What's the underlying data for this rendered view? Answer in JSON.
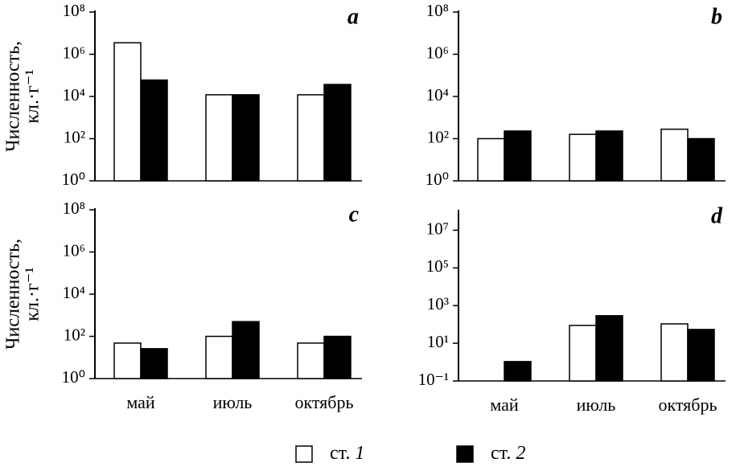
{
  "chart_data": [
    {
      "type": "bar",
      "label": "a",
      "log_scale": true,
      "ylabel": [
        "Численность,",
        "кл.·г⁻¹"
      ],
      "ylim": [
        1,
        100000000
      ],
      "yticks": [
        {
          "value": 1,
          "label": "10⁰"
        },
        {
          "value": 100,
          "label": "10²"
        },
        {
          "value": 10000,
          "label": "10⁴"
        },
        {
          "value": 1000000,
          "label": "10⁶"
        },
        {
          "value": 100000000,
          "label": "10⁸"
        }
      ],
      "series": [
        {
          "name": "ст. 1",
          "color": "#ffffff",
          "values": [
            3500000,
            12000,
            12000
          ]
        },
        {
          "name": "ст. 2",
          "color": "#000000",
          "values": [
            60000,
            12000,
            37000
          ]
        }
      ]
    },
    {
      "type": "bar",
      "label": "b",
      "log_scale": true,
      "ylim": [
        1,
        100000000
      ],
      "yticks": [
        {
          "value": 1,
          "label": "10⁰"
        },
        {
          "value": 100,
          "label": "10²"
        },
        {
          "value": 10000,
          "label": "10⁴"
        },
        {
          "value": 1000000,
          "label": "10⁶"
        },
        {
          "value": 100000000,
          "label": "10⁸"
        }
      ],
      "series": [
        {
          "color": "#ffffff",
          "values": [
            100,
            160,
            280
          ]
        },
        {
          "color": "#000000",
          "values": [
            230,
            230,
            100
          ]
        }
      ]
    },
    {
      "type": "bar",
      "label": "c",
      "log_scale": true,
      "ylabel": [
        "Численность,",
        "кл.·г⁻¹"
      ],
      "categories": [
        "май",
        "июль",
        "октябрь"
      ],
      "ylim": [
        1,
        100000000
      ],
      "yticks": [
        {
          "value": 1,
          "label": "10⁰"
        },
        {
          "value": 100,
          "label": "10²"
        },
        {
          "value": 10000,
          "label": "10⁴"
        },
        {
          "value": 1000000,
          "label": "10⁶"
        },
        {
          "value": 100000000,
          "label": "10⁸"
        }
      ],
      "series": [
        {
          "color": "#ffffff",
          "values": [
            48,
            100,
            48
          ]
        },
        {
          "color": "#000000",
          "values": [
            26,
            500,
            100
          ]
        }
      ]
    },
    {
      "type": "bar",
      "label": "d",
      "log_scale": true,
      "categories": [
        "май",
        "июль",
        "октябрь"
      ],
      "ylim": [
        0.1,
        100000000
      ],
      "yticks": [
        {
          "value": 0.1,
          "label": "10⁻¹"
        },
        {
          "value": 10,
          "label": "10¹"
        },
        {
          "value": 1000,
          "label": "10³"
        },
        {
          "value": 100000,
          "label": "10⁵"
        },
        {
          "value": 10000000,
          "label": "10⁷"
        }
      ],
      "series": [
        {
          "color": "#ffffff",
          "values": [
            null,
            89,
            107
          ]
        },
        {
          "color": "#000000",
          "values": [
            1.07,
            290,
            54
          ]
        }
      ]
    }
  ]
}
